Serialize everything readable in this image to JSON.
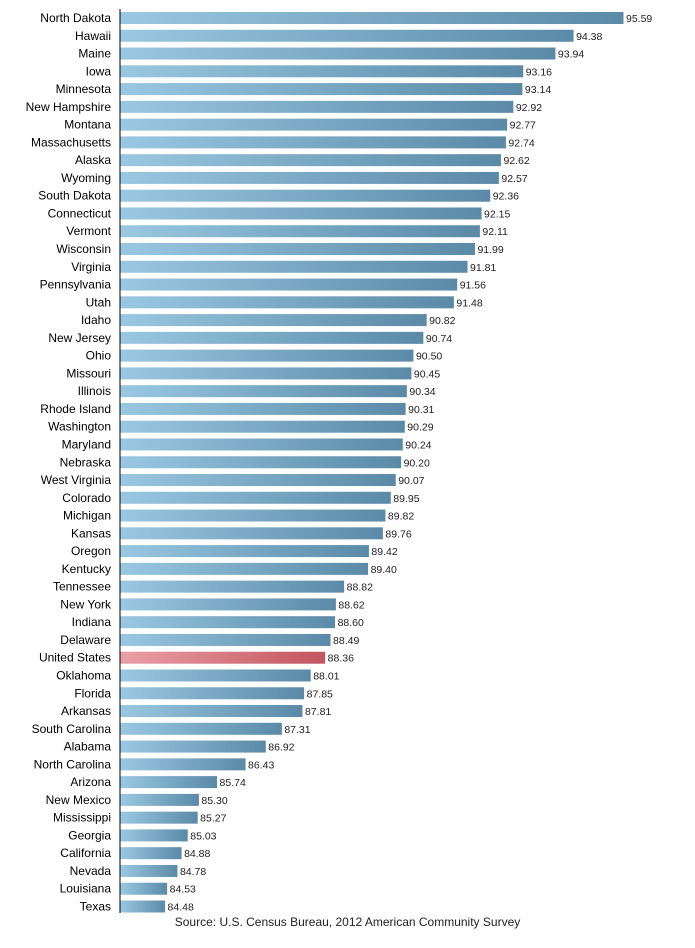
{
  "chart_data": {
    "type": "bar",
    "orientation": "horizontal",
    "categories": [
      "North Dakota",
      "Hawaii",
      "Maine",
      "Iowa",
      "Minnesota",
      "New Hampshire",
      "Montana",
      "Massachusetts",
      "Alaska",
      "Wyoming",
      "South Dakota",
      "Connecticut",
      "Vermont",
      "Wisconsin",
      "Virginia",
      "Pennsylvania",
      "Utah",
      "Idaho",
      "New Jersey",
      "Ohio",
      "Missouri",
      "Illinois",
      "Rhode Island",
      "Washington",
      "Maryland",
      "Nebraska",
      "West Virginia",
      "Colorado",
      "Michigan",
      "Kansas",
      "Oregon",
      "Kentucky",
      "Tennessee",
      "New York",
      "Indiana",
      "Delaware",
      "United States",
      "Oklahoma",
      "Florida",
      "Arkansas",
      "South Carolina",
      "Alabama",
      "North Carolina",
      "Arizona",
      "New Mexico",
      "Mississippi",
      "Georgia",
      "California",
      "Nevada",
      "Louisiana",
      "Texas"
    ],
    "values": [
      95.59,
      94.38,
      93.94,
      93.16,
      93.14,
      92.92,
      92.77,
      92.74,
      92.62,
      92.57,
      92.36,
      92.15,
      92.11,
      91.99,
      91.81,
      91.56,
      91.48,
      90.82,
      90.74,
      90.5,
      90.45,
      90.34,
      90.31,
      90.29,
      90.24,
      90.2,
      90.07,
      89.95,
      89.82,
      89.76,
      89.42,
      89.4,
      88.82,
      88.62,
      88.6,
      88.49,
      88.36,
      88.01,
      87.85,
      87.81,
      87.31,
      86.92,
      86.43,
      85.74,
      85.3,
      85.27,
      85.03,
      84.88,
      84.78,
      84.53,
      84.48
    ],
    "value_labels": [
      "95.59",
      "94.38",
      "93.94",
      "93.16",
      "93.14",
      "92.92",
      "92.77",
      "92.74",
      "92.62",
      "92.57",
      "92.36",
      "92.15",
      "92.11",
      "91.99",
      "91.81",
      "91.56",
      "91.48",
      "90.82",
      "90.74",
      "90.50",
      "90.45",
      "90.34",
      "90.31",
      "90.29",
      "90.24",
      "90.20",
      "90.07",
      "89.95",
      "89.82",
      "89.76",
      "89.42",
      "89.40",
      "88.82",
      "88.62",
      "88.60",
      "88.49",
      "88.36",
      "88.01",
      "87.85",
      "87.81",
      "87.31",
      "86.92",
      "86.43",
      "85.74",
      "85.30",
      "85.27",
      "85.03",
      "84.88",
      "84.78",
      "84.53",
      "84.48"
    ],
    "highlight_category": "United States",
    "colors": {
      "bar_start": "#9ac8e2",
      "bar_end": "#5a8aa7",
      "highlight_start": "#eaa0a6",
      "highlight_end": "#c25560",
      "axis": "#000000",
      "text": "#000000"
    },
    "xlim": [
      83.4,
      95.59
    ],
    "grid": false,
    "legend": "none"
  },
  "source": "Source: U.S. Census Bureau, 2012 American Community Survey"
}
